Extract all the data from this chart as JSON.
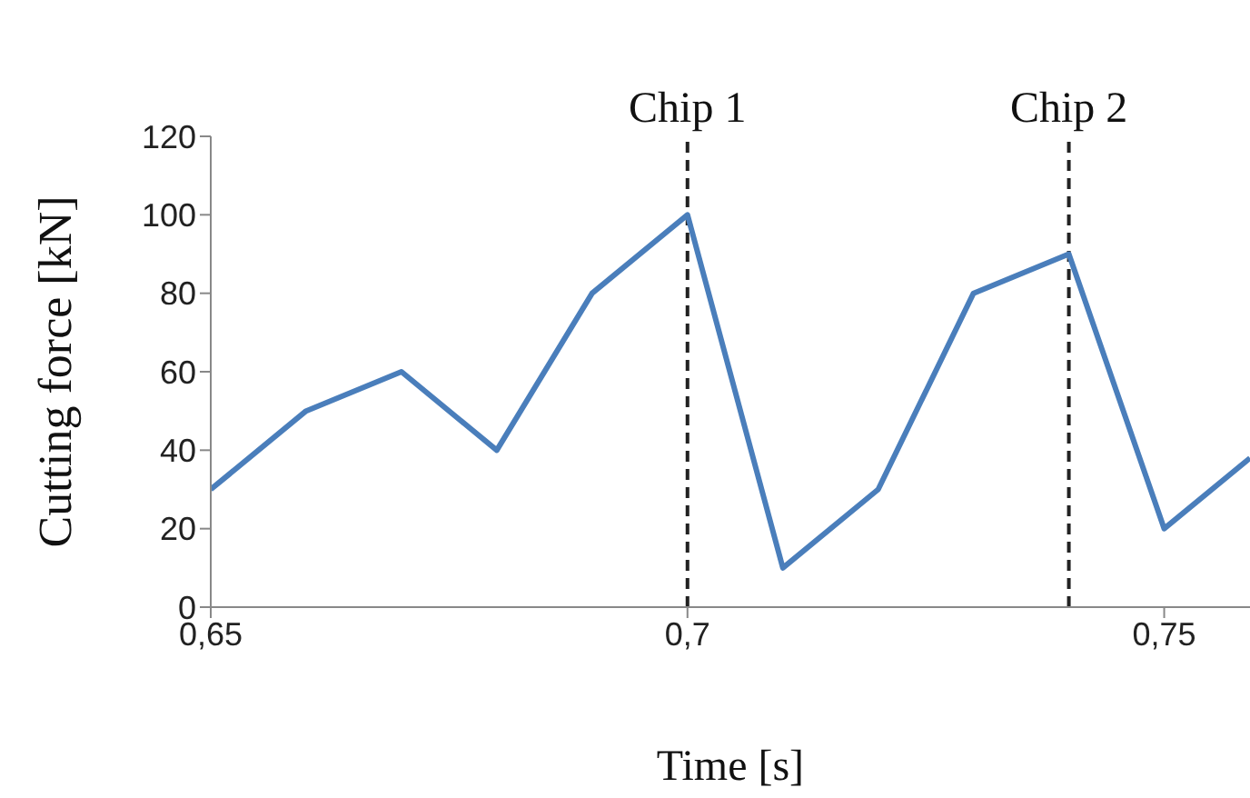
{
  "chart_data": {
    "type": "line",
    "xlabel": "Time [s]",
    "ylabel": "Cutting force [kN]",
    "x": [
      0.65,
      0.66,
      0.67,
      0.68,
      0.69,
      0.7,
      0.71,
      0.72,
      0.73,
      0.74,
      0.75,
      0.759
    ],
    "series": [
      {
        "color": "#4a7ebb",
        "values": [
          30,
          50,
          60,
          40,
          80,
          100,
          10,
          30,
          80,
          90,
          20,
          38
        ]
      }
    ],
    "xlim": [
      0.65,
      0.759
    ],
    "xticks": [
      {
        "value": 0.65,
        "label": "0,65"
      },
      {
        "value": 0.7,
        "label": "0,7"
      },
      {
        "value": 0.75,
        "label": "0,75"
      }
    ],
    "ylim": [
      0,
      120
    ],
    "yticks": [
      0,
      20,
      40,
      60,
      80,
      100,
      120
    ],
    "ref_lines": [
      {
        "axis": "x",
        "value": 0.7,
        "label": "Chip 1",
        "color": "#222222",
        "line_style": "dashed"
      },
      {
        "axis": "x",
        "value": 0.74,
        "label": "Chip 2",
        "color": "#222222",
        "line_style": "dashed"
      }
    ],
    "grid": false,
    "legend": false,
    "marker": "none",
    "line_style": "solid"
  }
}
